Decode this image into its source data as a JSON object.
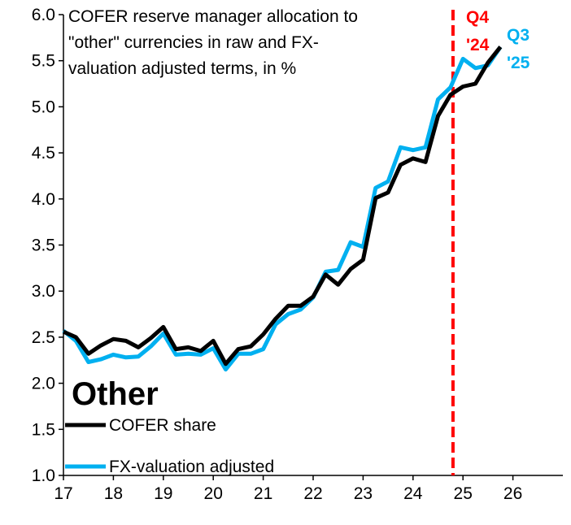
{
  "chart_data": {
    "type": "line",
    "title": "COFER reserve manager allocation to \"other\" currencies in raw and FX-valuation adjusted terms, in %",
    "title_lines": [
      "COFER reserve manager allocation to",
      "\"other\" currencies in raw and FX-",
      "valuation adjusted terms, in %"
    ],
    "panel_label": "Other",
    "xlabel": "",
    "ylabel": "",
    "xlim": [
      17,
      27
    ],
    "ylim": [
      1.0,
      6.0
    ],
    "x_ticks": [
      "17",
      "18",
      "19",
      "20",
      "21",
      "22",
      "23",
      "24",
      "25",
      "26"
    ],
    "y_ticks": [
      "1.0",
      "1.5",
      "2.0",
      "2.5",
      "3.0",
      "3.5",
      "4.0",
      "4.5",
      "5.0",
      "5.5",
      "6.0"
    ],
    "grid": false,
    "legend_position": "bottom-left",
    "x": [
      17.0,
      17.25,
      17.5,
      17.75,
      18.0,
      18.25,
      18.5,
      18.75,
      19.0,
      19.25,
      19.5,
      19.75,
      20.0,
      20.25,
      20.5,
      20.75,
      21.0,
      21.25,
      21.5,
      21.75,
      22.0,
      22.25,
      22.5,
      22.75,
      23.0,
      23.25,
      23.5,
      23.75,
      24.0,
      24.25,
      24.5,
      24.75,
      25.0,
      25.25,
      25.5,
      25.75
    ],
    "series": [
      {
        "name": "COFER share",
        "color": "#000000",
        "values": [
          2.56,
          2.5,
          2.32,
          2.41,
          2.48,
          2.46,
          2.39,
          2.49,
          2.61,
          2.37,
          2.39,
          2.35,
          2.46,
          2.21,
          2.37,
          2.4,
          2.53,
          2.7,
          2.84,
          2.84,
          2.94,
          3.18,
          3.07,
          3.24,
          3.34,
          4.01,
          4.07,
          4.37,
          4.44,
          4.4,
          4.9,
          5.13,
          5.22,
          5.25,
          5.48,
          5.65
        ]
      },
      {
        "name": "FX-valuation adjusted",
        "color": "#00B0F0",
        "values": [
          2.57,
          2.46,
          2.23,
          2.26,
          2.31,
          2.28,
          2.29,
          2.4,
          2.54,
          2.31,
          2.32,
          2.31,
          2.38,
          2.15,
          2.32,
          2.32,
          2.37,
          2.64,
          2.75,
          2.8,
          2.93,
          3.21,
          3.23,
          3.53,
          3.48,
          4.12,
          4.19,
          4.56,
          4.53,
          4.56,
          5.08,
          5.21,
          5.52,
          5.42,
          5.45,
          5.65
        ]
      }
    ],
    "annotations": [
      {
        "text_lines": [
          "Q4",
          "'24"
        ],
        "color": "#FF0000",
        "x": 24.8
      },
      {
        "text_lines": [
          "Q3",
          "'25"
        ],
        "color": "#00B0F0"
      }
    ]
  }
}
